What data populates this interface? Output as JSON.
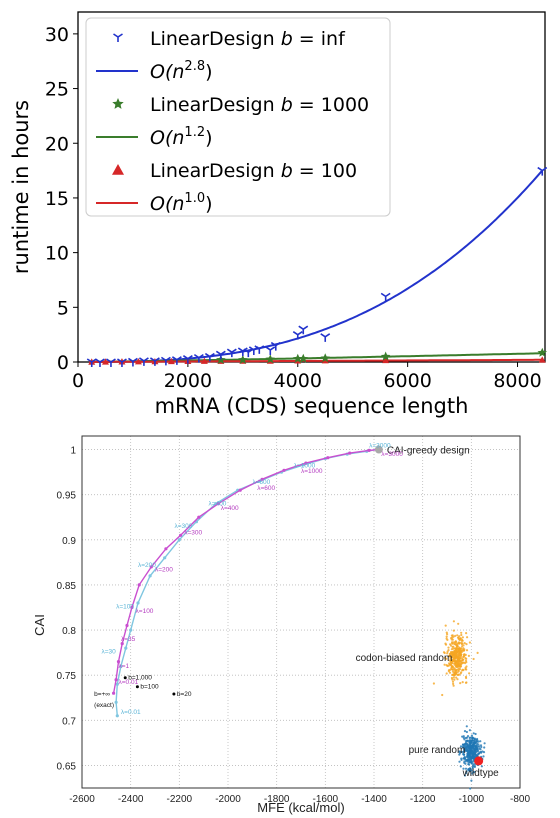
{
  "chart_data": [
    {
      "type": "scatter",
      "xlabel": "mRNA (CDS) sequence length",
      "ylabel": "runtime in hours",
      "xlim": [
        0,
        8500
      ],
      "ylim": [
        0,
        32
      ],
      "xticks": [
        "0",
        "2000",
        "4000",
        "6000",
        "8000"
      ],
      "yticks": [
        "0",
        "5",
        "10",
        "15",
        "20",
        "25",
        "30"
      ],
      "legend_position": "top-left",
      "legend": [
        {
          "base": "LinearDesign ",
          "var": "b",
          "rest": " = inf",
          "marker": "tri",
          "color": "#2233cc"
        },
        {
          "base": "O(n",
          "sup": "2.8",
          "close": ")",
          "marker": "line",
          "color": "#2233cc"
        },
        {
          "base": "LinearDesign ",
          "var": "b",
          "rest": " = 1000",
          "marker": "star",
          "color": "#3a7d2c"
        },
        {
          "base": "O(n",
          "sup": "1.2",
          "close": ")",
          "marker": "line",
          "color": "#3a7d2c"
        },
        {
          "base": "LinearDesign ",
          "var": "b",
          "rest": " = 100",
          "marker": "triangle",
          "color": "#d62728"
        },
        {
          "base": "O(n",
          "sup": "1.0",
          "close": ")",
          "marker": "line",
          "color": "#d62728"
        }
      ],
      "series": [
        {
          "name": "LinearDesign b = inf",
          "color": "#2233cc",
          "x": [
            250,
            400,
            600,
            800,
            1000,
            1200,
            1400,
            1600,
            1800,
            2000,
            2200,
            2400,
            2600,
            2800,
            3000,
            3100,
            3200,
            3300,
            3500,
            3600,
            4000,
            4100,
            4500,
            5600,
            8450
          ],
          "y": [
            0.0,
            0.0,
            0.0,
            0.0,
            0.05,
            0.1,
            0.1,
            0.15,
            0.2,
            0.3,
            0.4,
            0.5,
            0.7,
            0.9,
            1.0,
            0.9,
            1.1,
            1.2,
            1.1,
            1.5,
            2.5,
            3.0,
            2.3,
            6.0,
            17.5
          ]
        },
        {
          "name": "O(n^2.8)",
          "color": "#2233cc",
          "fit": {
            "a": 17.5,
            "x0": 8450,
            "p": 2.8
          }
        },
        {
          "name": "LinearDesign b = 1000",
          "color": "#3a7d2c",
          "x": [
            2600,
            3000,
            3500,
            4000,
            4100,
            4500,
            5600,
            8450
          ],
          "y": [
            0.2,
            0.2,
            0.25,
            0.3,
            0.3,
            0.35,
            0.5,
            0.85
          ]
        },
        {
          "name": "O(n^1.2)",
          "color": "#3a7d2c",
          "fit": {
            "a": 0.8,
            "x0": 8450,
            "p": 1.2
          }
        },
        {
          "name": "LinearDesign b = 100",
          "color": "#d62728",
          "x": [
            250,
            500,
            800,
            1100,
            1400,
            1700,
            2000,
            2300,
            2600,
            3000,
            3500,
            4000,
            4500,
            5600,
            8450
          ],
          "y": [
            0.01,
            0.02,
            0.03,
            0.04,
            0.05,
            0.06,
            0.07,
            0.08,
            0.09,
            0.1,
            0.1,
            0.12,
            0.13,
            0.15,
            0.2
          ]
        },
        {
          "name": "O(n^1.0)",
          "color": "#d62728",
          "fit": {
            "a": 0.2,
            "x0": 8450,
            "p": 1.0
          }
        }
      ]
    },
    {
      "type": "scatter",
      "xlabel": "MFE (kcal/mol)",
      "ylabel": "CAI",
      "xlim": [
        -2600,
        -800
      ],
      "ylim": [
        0.625,
        1.015
      ],
      "xticks": [
        "-2600",
        "-2400",
        "-2200",
        "-2000",
        "-1800",
        "-1600",
        "-1400",
        "-1200",
        "-1000",
        "-800"
      ],
      "yticks": [
        "0.65",
        "0.7",
        "0.75",
        "0.8",
        "0.85",
        "0.9",
        "0.95",
        "1"
      ],
      "grid": true,
      "curve_cyan": {
        "x": [
          -2455,
          -2460,
          -2455,
          -2440,
          -2420,
          -2400,
          -2370,
          -2320,
          -2260,
          -2200,
          -2130,
          -2050,
          -1960,
          -1870,
          -1780,
          -1690,
          -1600,
          -1510,
          -1430,
          -1390
        ],
        "y": [
          0.705,
          0.72,
          0.74,
          0.76,
          0.78,
          0.8,
          0.83,
          0.86,
          0.88,
          0.9,
          0.92,
          0.94,
          0.955,
          0.965,
          0.975,
          0.983,
          0.99,
          0.995,
          0.998,
          1.0
        ]
      },
      "curve_magenta": {
        "x": [
          -2470,
          -2460,
          -2450,
          -2435,
          -2415,
          -2395,
          -2365,
          -2315,
          -2255,
          -2195,
          -2120,
          -2040,
          -1950,
          -1860,
          -1770,
          -1680,
          -1590,
          -1500,
          -1420,
          -1380
        ],
        "y": [
          0.73,
          0.745,
          0.765,
          0.785,
          0.805,
          0.825,
          0.85,
          0.87,
          0.89,
          0.905,
          0.925,
          0.94,
          0.955,
          0.967,
          0.977,
          0.985,
          0.991,
          0.996,
          0.999,
          1.0
        ]
      },
      "cyan_labels": [
        {
          "text": "λ=3000",
          "x": -1420,
          "y": 1.002
        },
        {
          "text": "λ=1000",
          "x": -1730,
          "y": 0.98
        },
        {
          "text": "λ=600",
          "x": -1900,
          "y": 0.962
        },
        {
          "text": "λ=400",
          "x": -2080,
          "y": 0.938
        },
        {
          "text": "λ=300",
          "x": -2220,
          "y": 0.913
        },
        {
          "text": "λ=200",
          "x": -2370,
          "y": 0.87
        },
        {
          "text": "λ=100",
          "x": -2460,
          "y": 0.824
        },
        {
          "text": "λ=30",
          "x": -2520,
          "y": 0.774
        },
        {
          "text": "λ=0.01",
          "x": -2440,
          "y": 0.707
        }
      ],
      "magenta_labels": [
        {
          "text": "λ=3000",
          "x": -1370,
          "y": 0.993
        },
        {
          "text": "λ=1000",
          "x": -1700,
          "y": 0.974
        },
        {
          "text": "λ=600",
          "x": -1880,
          "y": 0.955
        },
        {
          "text": "λ=400",
          "x": -2030,
          "y": 0.933
        },
        {
          "text": "λ=300",
          "x": -2180,
          "y": 0.906
        },
        {
          "text": "λ=200",
          "x": -2300,
          "y": 0.865
        },
        {
          "text": "λ=100",
          "x": -2380,
          "y": 0.819
        },
        {
          "text": "λ=35",
          "x": -2440,
          "y": 0.788
        },
        {
          "text": "λ=1",
          "x": -2450,
          "y": 0.758
        },
        {
          "text": "λ=0.01",
          "x": -2450,
          "y": 0.74
        }
      ],
      "black_points": [
        {
          "text": "b=1,000",
          "x": -2410,
          "y": 0.745
        },
        {
          "text": "b=100",
          "x": -2360,
          "y": 0.735
        },
        {
          "text": "b=20",
          "x": -2210,
          "y": 0.727
        },
        {
          "text": "b=+∞",
          "x": -2550,
          "y": 0.727
        },
        {
          "text": "(exact)",
          "x": -2550,
          "y": 0.715
        }
      ],
      "clouds": [
        {
          "name": "codon-biased random",
          "color": "#f5a623",
          "x": -1060,
          "y": 0.77,
          "sx": 22,
          "sy": 0.012
        },
        {
          "name": "pure random",
          "color": "#1f77b4",
          "x": -1000,
          "y": 0.665,
          "sx": 20,
          "sy": 0.01
        }
      ],
      "wildtype": {
        "name": "wildtype",
        "color": "#ee2222",
        "x": -970,
        "y": 0.655
      },
      "cai_greedy": {
        "name": "CAI-greedy design",
        "x": -1380,
        "y": 1.0
      }
    }
  ]
}
